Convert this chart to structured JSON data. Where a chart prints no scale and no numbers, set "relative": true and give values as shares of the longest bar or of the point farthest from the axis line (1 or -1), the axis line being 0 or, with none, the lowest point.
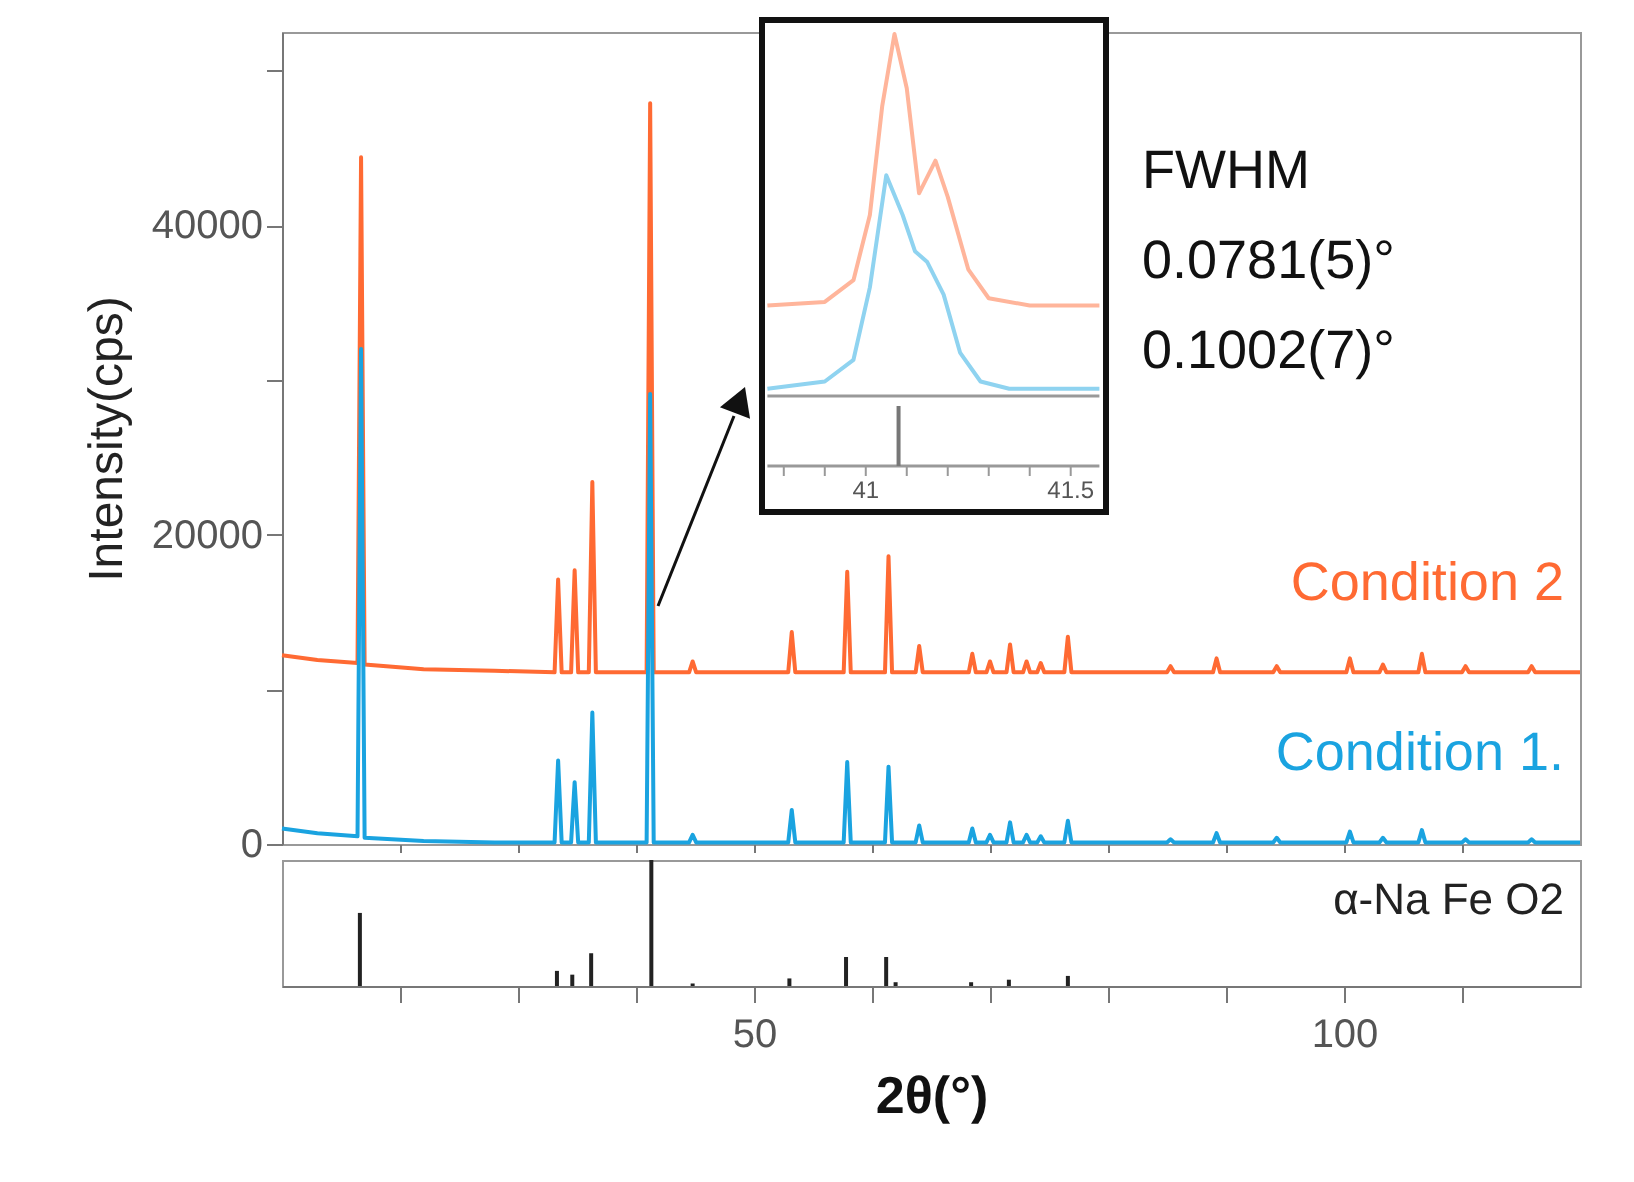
{
  "chart_data": [
    {
      "type": "line",
      "ylabel": "Intensity(cps)",
      "xlim": [
        10,
        120
      ],
      "xticks": [
        {
          "value": 20,
          "label": null
        },
        {
          "value": 30,
          "label": null
        },
        {
          "value": 40,
          "label": null
        },
        50,
        {
          "value": 60,
          "label": null
        },
        {
          "value": 70,
          "label": null
        },
        {
          "value": 80,
          "label": null
        },
        {
          "value": 90,
          "label": null
        },
        100,
        {
          "value": 110,
          "label": null
        }
      ],
      "ylim": [
        0,
        52500
      ],
      "yticks": [
        0,
        {
          "value": 10000,
          "label": null
        },
        20000,
        {
          "value": 30000,
          "label": null
        },
        40000,
        {
          "value": 50000,
          "label": null
        }
      ],
      "tick_labels": "y",
      "x": [
        10,
        13,
        16.4,
        16.7,
        17.0,
        22,
        28,
        33.1,
        33.4,
        33.7,
        34.5,
        34.8,
        35.1,
        36.0,
        36.3,
        36.6,
        40.9,
        41.2,
        41.5,
        44.5,
        44.8,
        45.1,
        52.9,
        53.2,
        53.5,
        57.6,
        57.9,
        58.2,
        61.1,
        61.4,
        61.7,
        63.7,
        64.0,
        64.3,
        68.2,
        68.5,
        68.8,
        69.7,
        70.0,
        70.3,
        71.4,
        71.7,
        72.0,
        72.8,
        73.1,
        73.4,
        74.0,
        74.3,
        74.6,
        76.3,
        76.6,
        76.9,
        85.0,
        85.3,
        85.6,
        88.9,
        89.2,
        89.5,
        94.0,
        94.3,
        94.6,
        100.2,
        100.5,
        100.8,
        103.0,
        103.3,
        103.6,
        106.3,
        106.6,
        106.9,
        110.0,
        110.3,
        110.6,
        115.6,
        115.9,
        116.2,
        120
      ],
      "series": [
        {
          "name": "Condition 2",
          "color": "#ff6a33",
          "values": [
            12200,
            11900,
            11700,
            44400,
            11600,
            11300,
            11200,
            11100,
            17100,
            11100,
            11100,
            17700,
            11100,
            11100,
            23400,
            11100,
            11100,
            47900,
            11100,
            11100,
            11800,
            11100,
            11100,
            13700,
            11100,
            11100,
            17600,
            11100,
            11100,
            18600,
            11100,
            11100,
            12800,
            11100,
            11100,
            12300,
            11100,
            11100,
            11800,
            11100,
            11100,
            12900,
            11100,
            11100,
            11800,
            11100,
            11100,
            11700,
            11100,
            11100,
            13400,
            11100,
            11100,
            11500,
            11100,
            11100,
            12000,
            11100,
            11100,
            11500,
            11100,
            11100,
            12000,
            11100,
            11100,
            11600,
            11100,
            11100,
            12300,
            11100,
            11100,
            11500,
            11100,
            11100,
            11500,
            11100,
            11100
          ]
        },
        {
          "name": "Condition 1.",
          "color": "#1aa3e0",
          "values": [
            1000,
            700,
            500,
            32000,
            400,
            200,
            100,
            100,
            5400,
            100,
            100,
            4000,
            100,
            100,
            8500,
            100,
            100,
            29100,
            100,
            100,
            600,
            100,
            100,
            2200,
            100,
            100,
            5300,
            100,
            100,
            5000,
            100,
            100,
            1200,
            100,
            100,
            1000,
            100,
            100,
            600,
            100,
            100,
            1400,
            100,
            100,
            600,
            100,
            100,
            500,
            100,
            100,
            1500,
            100,
            100,
            300,
            100,
            100,
            700,
            100,
            100,
            400,
            100,
            100,
            800,
            100,
            100,
            400,
            100,
            100,
            900,
            100,
            100,
            300,
            100,
            100,
            300,
            100,
            100
          ]
        }
      ]
    },
    {
      "type": "bar",
      "relative": true,
      "xlabel": "2θ(°)",
      "xlim": [
        10,
        120
      ],
      "xticks": [
        {
          "value": 20,
          "label": null
        },
        {
          "value": 30,
          "label": null
        },
        {
          "value": 40,
          "label": null
        },
        50,
        {
          "value": 60,
          "label": null
        },
        {
          "value": 70,
          "label": null
        },
        {
          "value": 80,
          "label": null
        },
        {
          "value": 90,
          "label": null
        },
        100,
        {
          "value": 110,
          "label": null
        }
      ],
      "tick_labels": "x",
      "x": [
        16.6,
        33.3,
        34.6,
        36.2,
        41.3,
        44.8,
        53.0,
        57.8,
        61.2,
        62.0,
        68.4,
        71.6,
        76.6
      ],
      "series": [
        {
          "name": "α-Na Fe O2",
          "color": "#222222",
          "values": [
            0.58,
            0.12,
            0.09,
            0.26,
            1,
            0.02,
            0.06,
            0.23,
            0.23,
            0.03,
            0.03,
            0.05,
            0.08
          ]
        }
      ]
    },
    {
      "type": "line",
      "relative": true,
      "xlim": [
        40.76,
        41.57
      ],
      "tick_labels": false,
      "annotations": [
        "FWHM",
        "0.0781(5)°",
        "0.1002(7)°"
      ],
      "series": [
        {
          "color": "#ffb59b",
          "x": [
            40.76,
            40.9,
            40.97,
            41.01,
            41.04,
            41.07,
            41.1,
            41.13,
            41.17,
            41.2,
            41.25,
            41.3,
            41.4,
            41.57
          ],
          "values": [
            0.25,
            0.26,
            0.32,
            0.5,
            0.8,
            1.0,
            0.85,
            0.56,
            0.65,
            0.55,
            0.35,
            0.27,
            0.25,
            0.25
          ]
        },
        {
          "color": "#8fd3f0",
          "x": [
            40.76,
            40.9,
            40.97,
            41.01,
            41.05,
            41.09,
            41.12,
            41.15,
            41.19,
            41.23,
            41.28,
            41.35,
            41.57
          ],
          "values": [
            0.02,
            0.04,
            0.1,
            0.3,
            0.61,
            0.5,
            0.4,
            0.37,
            0.28,
            0.12,
            0.04,
            0.02,
            0.02
          ]
        }
      ]
    },
    {
      "type": "bar",
      "relative": true,
      "xlim": [
        40.76,
        41.57
      ],
      "xticks": [
        {
          "value": 40.8,
          "label": null
        },
        {
          "value": 40.9,
          "label": null
        },
        41,
        {
          "value": 41.1,
          "label": null
        },
        {
          "value": 41.2,
          "label": null
        },
        {
          "value": 41.3,
          "label": null
        },
        {
          "value": 41.4,
          "label": null
        },
        41.5
      ],
      "tick_labels": "x",
      "x": [
        41.08
      ],
      "series": [
        {
          "color": "#777777",
          "values": [
            1
          ]
        }
      ]
    }
  ]
}
